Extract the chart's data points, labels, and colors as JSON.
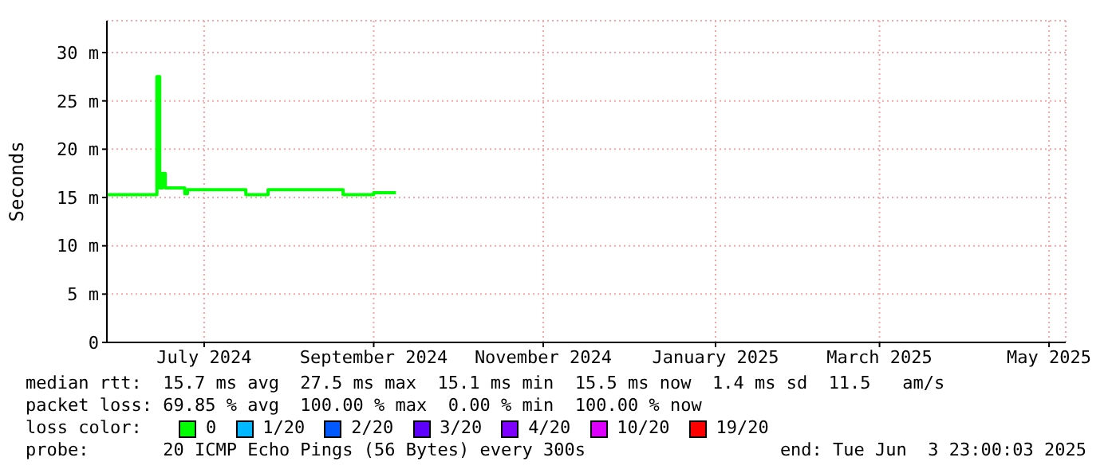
{
  "chart_data": {
    "type": "step",
    "ylabel": "Seconds",
    "x": [
      "2024-06-11",
      "2024-06-28",
      "2024-06-29",
      "2024-06-30",
      "2024-07-01",
      "2024-07-02",
      "2024-07-07",
      "2024-07-09",
      "2024-07-10",
      "2024-07-30",
      "2024-07-31",
      "2024-08-06",
      "2024-08-08",
      "2024-09-03",
      "2024-09-04",
      "2024-09-14",
      "2024-09-15",
      "2024-09-23"
    ],
    "series": [
      {
        "name": "0",
        "color": "#00ff00",
        "values": [
          15.3,
          15.3,
          27.5,
          16,
          17.5,
          16,
          16,
          15.4,
          15.8,
          15.8,
          15.3,
          15.3,
          15.8,
          15.8,
          15.3,
          15.3,
          15.5,
          15.5
        ]
      },
      {
        "name": "1/20",
        "color": "#00b8ff",
        "values": [
          null,
          null,
          null,
          null,
          null,
          null,
          null,
          null,
          null,
          null,
          null,
          null,
          null,
          null,
          null,
          null,
          null,
          null
        ]
      },
      {
        "name": "2/20",
        "color": "#0059ff",
        "values": [
          null,
          null,
          null,
          null,
          null,
          null,
          null,
          null,
          null,
          null,
          null,
          null,
          null,
          null,
          null,
          null,
          null,
          null
        ]
      },
      {
        "name": "3/20",
        "color": "#5e00ff",
        "values": [
          null,
          null,
          null,
          null,
          null,
          null,
          null,
          null,
          null,
          null,
          null,
          null,
          null,
          null,
          null,
          null,
          null,
          null
        ]
      },
      {
        "name": "4/20",
        "color": "#7e00ff",
        "values": [
          null,
          null,
          null,
          null,
          null,
          null,
          null,
          null,
          null,
          null,
          null,
          null,
          null,
          null,
          null,
          null,
          null,
          null
        ]
      },
      {
        "name": "10/20",
        "color": "#dd00ff",
        "values": [
          null,
          null,
          null,
          null,
          null,
          null,
          null,
          null,
          null,
          null,
          null,
          null,
          null,
          null,
          null,
          null,
          null,
          null
        ]
      },
      {
        "name": "19/20",
        "color": "#ff0000",
        "values": [
          null,
          null,
          null,
          null,
          null,
          null,
          null,
          null,
          null,
          null,
          null,
          null,
          null,
          null,
          null,
          null,
          null,
          null
        ]
      }
    ],
    "xlim": [
      "2024-06-11",
      "2025-05-22"
    ],
    "xticks": [
      {
        "value": "2024-07-16",
        "label": "July 2024"
      },
      {
        "value": "2024-09-15",
        "label": "September 2024"
      },
      {
        "value": "2024-11-15",
        "label": "November 2024"
      },
      {
        "value": "2025-01-16",
        "label": "January 2025"
      },
      {
        "value": "2025-03-16",
        "label": "March 2025"
      },
      {
        "value": "2025-05-16",
        "label": "May 2025"
      }
    ],
    "ylim": [
      0,
      33.3
    ],
    "yticks": [
      {
        "value": 0,
        "label": "0"
      },
      {
        "value": 5,
        "label": "5 m"
      },
      {
        "value": 10,
        "label": "10 m"
      },
      {
        "value": 15,
        "label": "15 m"
      },
      {
        "value": 20,
        "label": "20 m"
      },
      {
        "value": 25,
        "label": "25 m"
      },
      {
        "value": 30,
        "label": "30 m"
      }
    ],
    "grid": true,
    "legend": "bottom",
    "legend_title": "loss color:",
    "annotations": [
      "median rtt:  15.7 ms avg  27.5 ms max  15.1 ms min  15.5 ms now  1.4 ms sd  11.5   am/s",
      "packet loss: 69.85 % avg  100.00 % max  0.00 % min  100.00 % now",
      "probe:       20 ICMP Echo Pings (56 Bytes) every 300s",
      "end: Tue Jun  3 23:00:03 2025"
    ]
  }
}
